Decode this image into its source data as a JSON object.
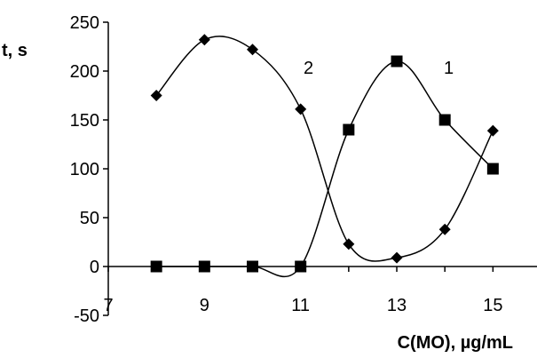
{
  "chart_data": {
    "type": "scatter",
    "xlabel": "C(MO), µg/mL",
    "ylabel": "t, s",
    "xlim": [
      7,
      16
    ],
    "ylim": [
      -50,
      250
    ],
    "xticks": [
      "7",
      "9",
      "11",
      "13",
      "15"
    ],
    "yticks": [
      "-50",
      "0",
      "50",
      "100",
      "150",
      "200",
      "250"
    ],
    "grid": false,
    "legend": "none",
    "series": [
      {
        "name": "1",
        "marker": "square",
        "color": "#000000",
        "x": [
          8,
          9,
          10,
          11,
          12,
          13,
          14,
          15
        ],
        "y": [
          0,
          0,
          0,
          0,
          140,
          210,
          150,
          100
        ]
      },
      {
        "name": "2",
        "marker": "diamond",
        "color": "#000000",
        "x": [
          8,
          9,
          10,
          11,
          12,
          13,
          14,
          15
        ],
        "y": [
          175,
          232,
          222,
          161,
          23,
          9,
          38,
          139
        ]
      }
    ]
  }
}
